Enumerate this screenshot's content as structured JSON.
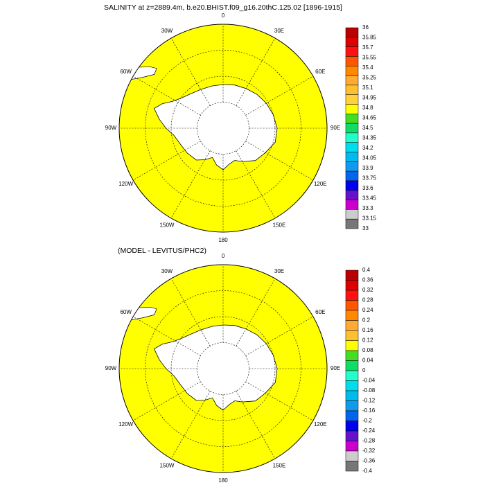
{
  "panels": [
    {
      "id": "top",
      "title": "SALINITY at z=2889.4m, b.e20.BHIST.f09_g16.20thC.125.02 [1896-1915]",
      "lon_labels": {
        "0": "0",
        "30E": "30E",
        "60E": "60E",
        "90E": "90E",
        "120E": "120E",
        "150E": "150E",
        "180": "180",
        "150W": "150W",
        "120W": "120W",
        "90W": "90W",
        "60W": "60W",
        "30W": "30W"
      },
      "field_colors": {
        "outer": "#ffff00",
        "band": "#44dd22",
        "land": "#ffffff"
      },
      "colorbar": {
        "labels": [
          "36",
          "35.85",
          "35.7",
          "35.55",
          "35.4",
          "35.25",
          "35.1",
          "34.95",
          "34.8",
          "34.65",
          "34.5",
          "34.35",
          "34.2",
          "34.05",
          "33.9",
          "33.75",
          "33.6",
          "33.45",
          "33.3",
          "33.15",
          "33"
        ],
        "colors": [
          "#bb0000",
          "#dd0000",
          "#ff1111",
          "#ff5500",
          "#ff8800",
          "#ffaa33",
          "#ffc030",
          "#ffd040",
          "#ffff00",
          "#44dd22",
          "#11dd66",
          "#22ffcc",
          "#00ddee",
          "#00bbee",
          "#1199ee",
          "#0066ee",
          "#0000ee",
          "#6611cc",
          "#cc00cc",
          "#cccccc",
          "#777777"
        ]
      }
    },
    {
      "id": "bottom",
      "title": "(MODEL - LEVITUS/PHC2)",
      "lon_labels": {
        "0": "0",
        "30E": "30E",
        "60E": "60E",
        "90E": "90E",
        "120E": "120E",
        "150E": "150E",
        "180": "180",
        "150W": "150W",
        "120W": "120W",
        "90W": "90W",
        "60W": "60W",
        "30W": "30W"
      },
      "field_colors": {
        "outer": "#ffff00",
        "band": "#44dd22",
        "orange": "#ffc030",
        "dark_orange": "#ffaa33",
        "land": "#ffffff",
        "cyan": "#11dd66"
      },
      "colorbar": {
        "labels": [
          "0.4",
          "0.36",
          "0.32",
          "0.28",
          "0.24",
          "0.2",
          "0.16",
          "0.12",
          "0.08",
          "0.04",
          "0",
          "-0.04",
          "-0.08",
          "-0.12",
          "-0.16",
          "-0.2",
          "-0.24",
          "-0.28",
          "-0.32",
          "-0.36",
          "-0.4"
        ],
        "colors": [
          "#bb0000",
          "#dd0000",
          "#ff1111",
          "#ff5500",
          "#ff8800",
          "#ffaa33",
          "#ffc030",
          "#ffff00",
          "#44dd22",
          "#11dd66",
          "#22ffcc",
          "#00ddee",
          "#00bbee",
          "#1199ee",
          "#0066ee",
          "#0000ee",
          "#6611cc",
          "#cc00cc",
          "#cccccc",
          "#777777"
        ]
      }
    }
  ]
}
